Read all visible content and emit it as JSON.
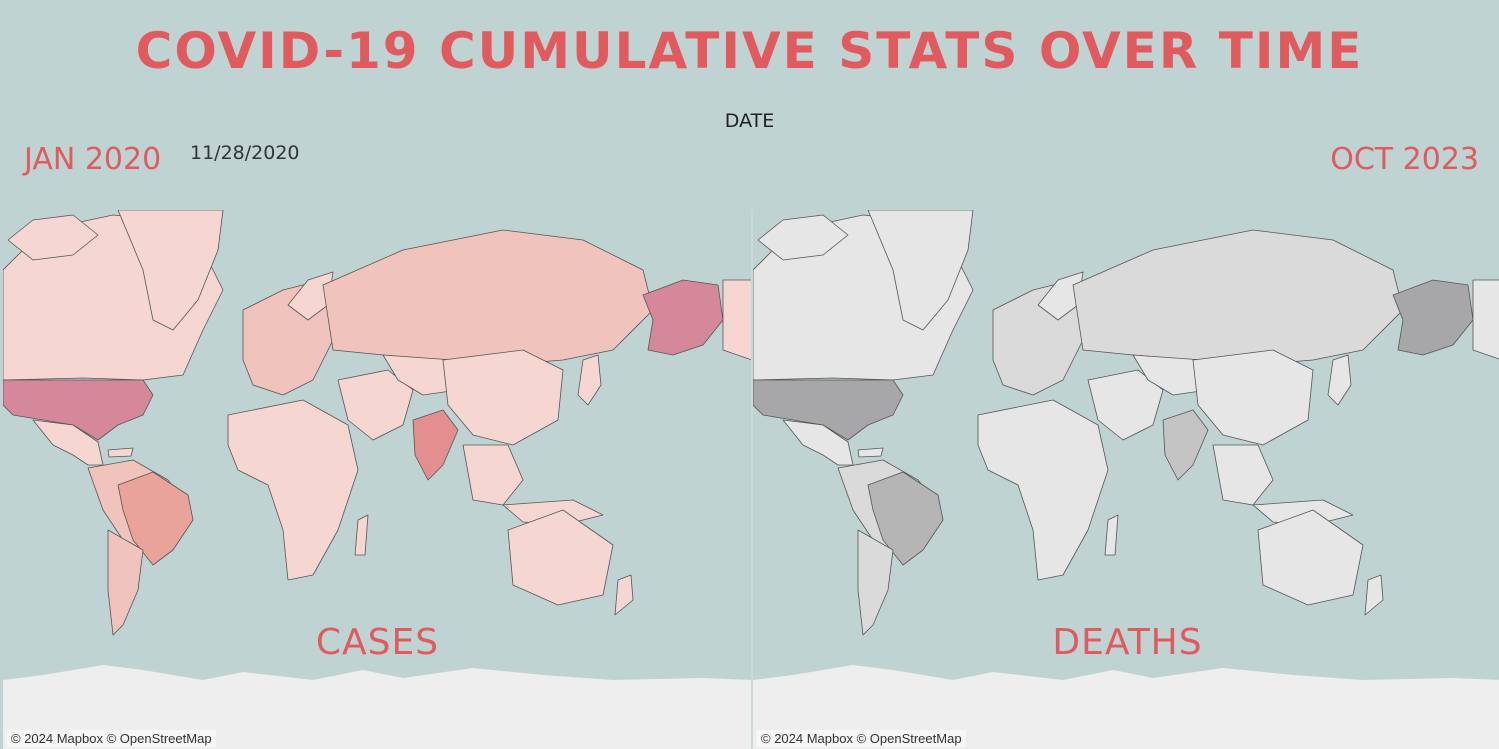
{
  "header": {
    "title": "COVID-19 CUMULATIVE STATS OVER TIME",
    "date_label": "DATE"
  },
  "slider": {
    "range_start": "JAN 2020",
    "current_date": "11/28/2020",
    "range_end": "OCT 2023"
  },
  "maps": [
    {
      "label": "CASES",
      "attribution": "© 2024 Mapbox © OpenStreetMap",
      "colors": {
        "base": "#f6d6d1",
        "mid": "#f0c4bc",
        "high": "#e9a39b",
        "top": "#d4889a",
        "india": "#e38e8f"
      }
    },
    {
      "label": "DEATHS",
      "attribution": "© 2024 Mapbox © OpenStreetMap",
      "colors": {
        "base": "#e6e6e6",
        "mid": "#dadada",
        "high": "#b5b5b5",
        "top": "#a7a7a9",
        "india": "#c4c4c4"
      }
    }
  ],
  "theme": {
    "ocean": "#bfd3d3",
    "accent": "#e05a5e",
    "antarctica": "#eeeeee",
    "border": "#555555"
  }
}
